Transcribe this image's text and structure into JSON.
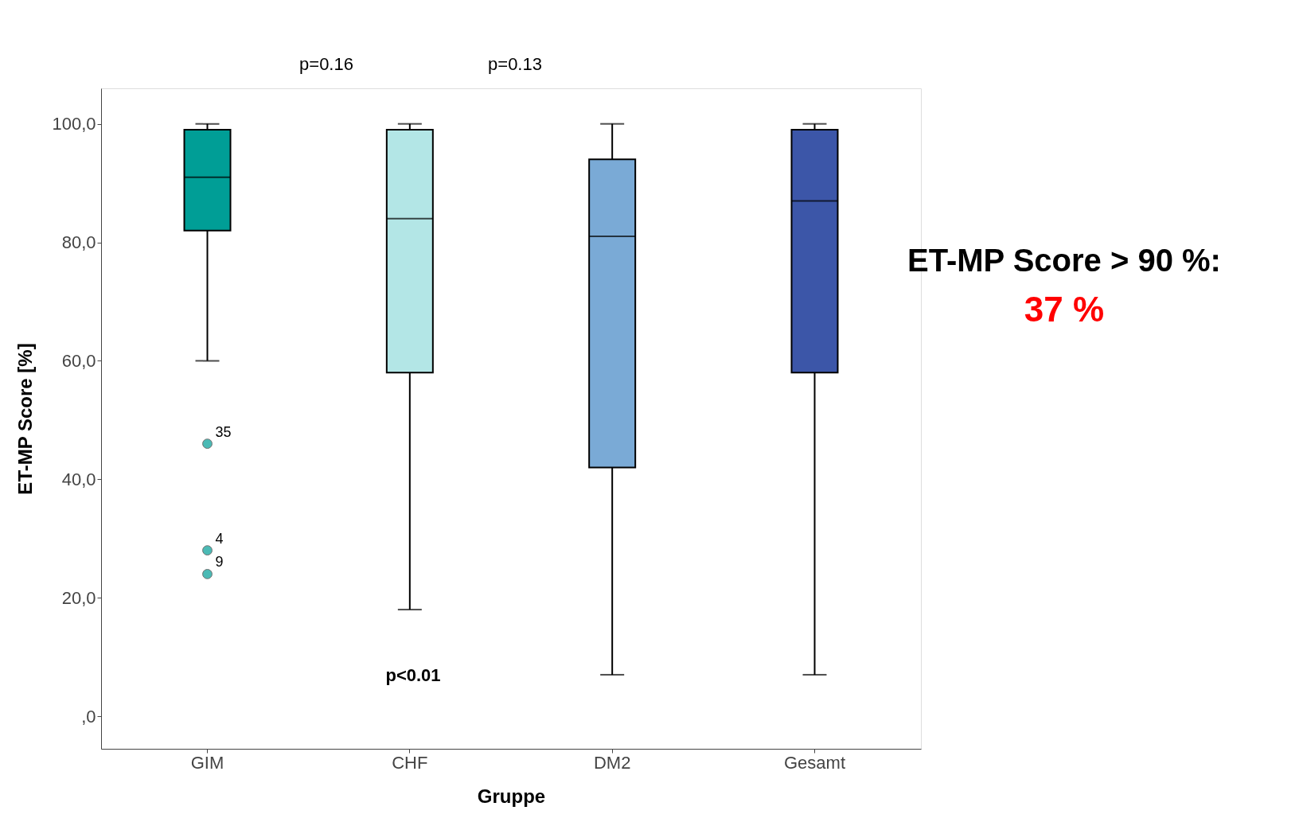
{
  "chart_data": {
    "type": "box",
    "xlabel": "Gruppe",
    "ylabel": "ET-MP Score [%]",
    "categories": [
      "GIM",
      "CHF",
      "DM2",
      "Gesamt"
    ],
    "colors": [
      "#009e96",
      "#b3e6e6",
      "#7aaad6",
      "#3c56a8"
    ],
    "boxes": [
      {
        "low": 60,
        "q1": 82,
        "median": 91,
        "q3": 99,
        "high": 100,
        "outliers": [
          46,
          28,
          24
        ]
      },
      {
        "low": 18,
        "q1": 58,
        "median": 84,
        "q3": 99,
        "high": 100
      },
      {
        "low": 7,
        "q1": 42,
        "median": 81,
        "q3": 94,
        "high": 100
      },
      {
        "low": 7,
        "q1": 58,
        "median": 87,
        "q3": 99,
        "high": 100
      }
    ],
    "ylim": [
      -5.5,
      106
    ],
    "yticks": [
      {
        "value": 0,
        "label": ",0"
      },
      {
        "value": 20,
        "label": "20,0"
      },
      {
        "value": 40,
        "label": "40,0"
      },
      {
        "value": 60,
        "label": "60,0"
      },
      {
        "value": 80,
        "label": "80,0"
      },
      {
        "value": 100,
        "label": "100,0"
      }
    ],
    "grid": false,
    "legend": false,
    "annotations": [
      "35",
      "4",
      "9",
      "p=0.16",
      "p=0.13",
      "p<0.01",
      "ET-MP Score > 90 %:",
      "37 %"
    ]
  }
}
